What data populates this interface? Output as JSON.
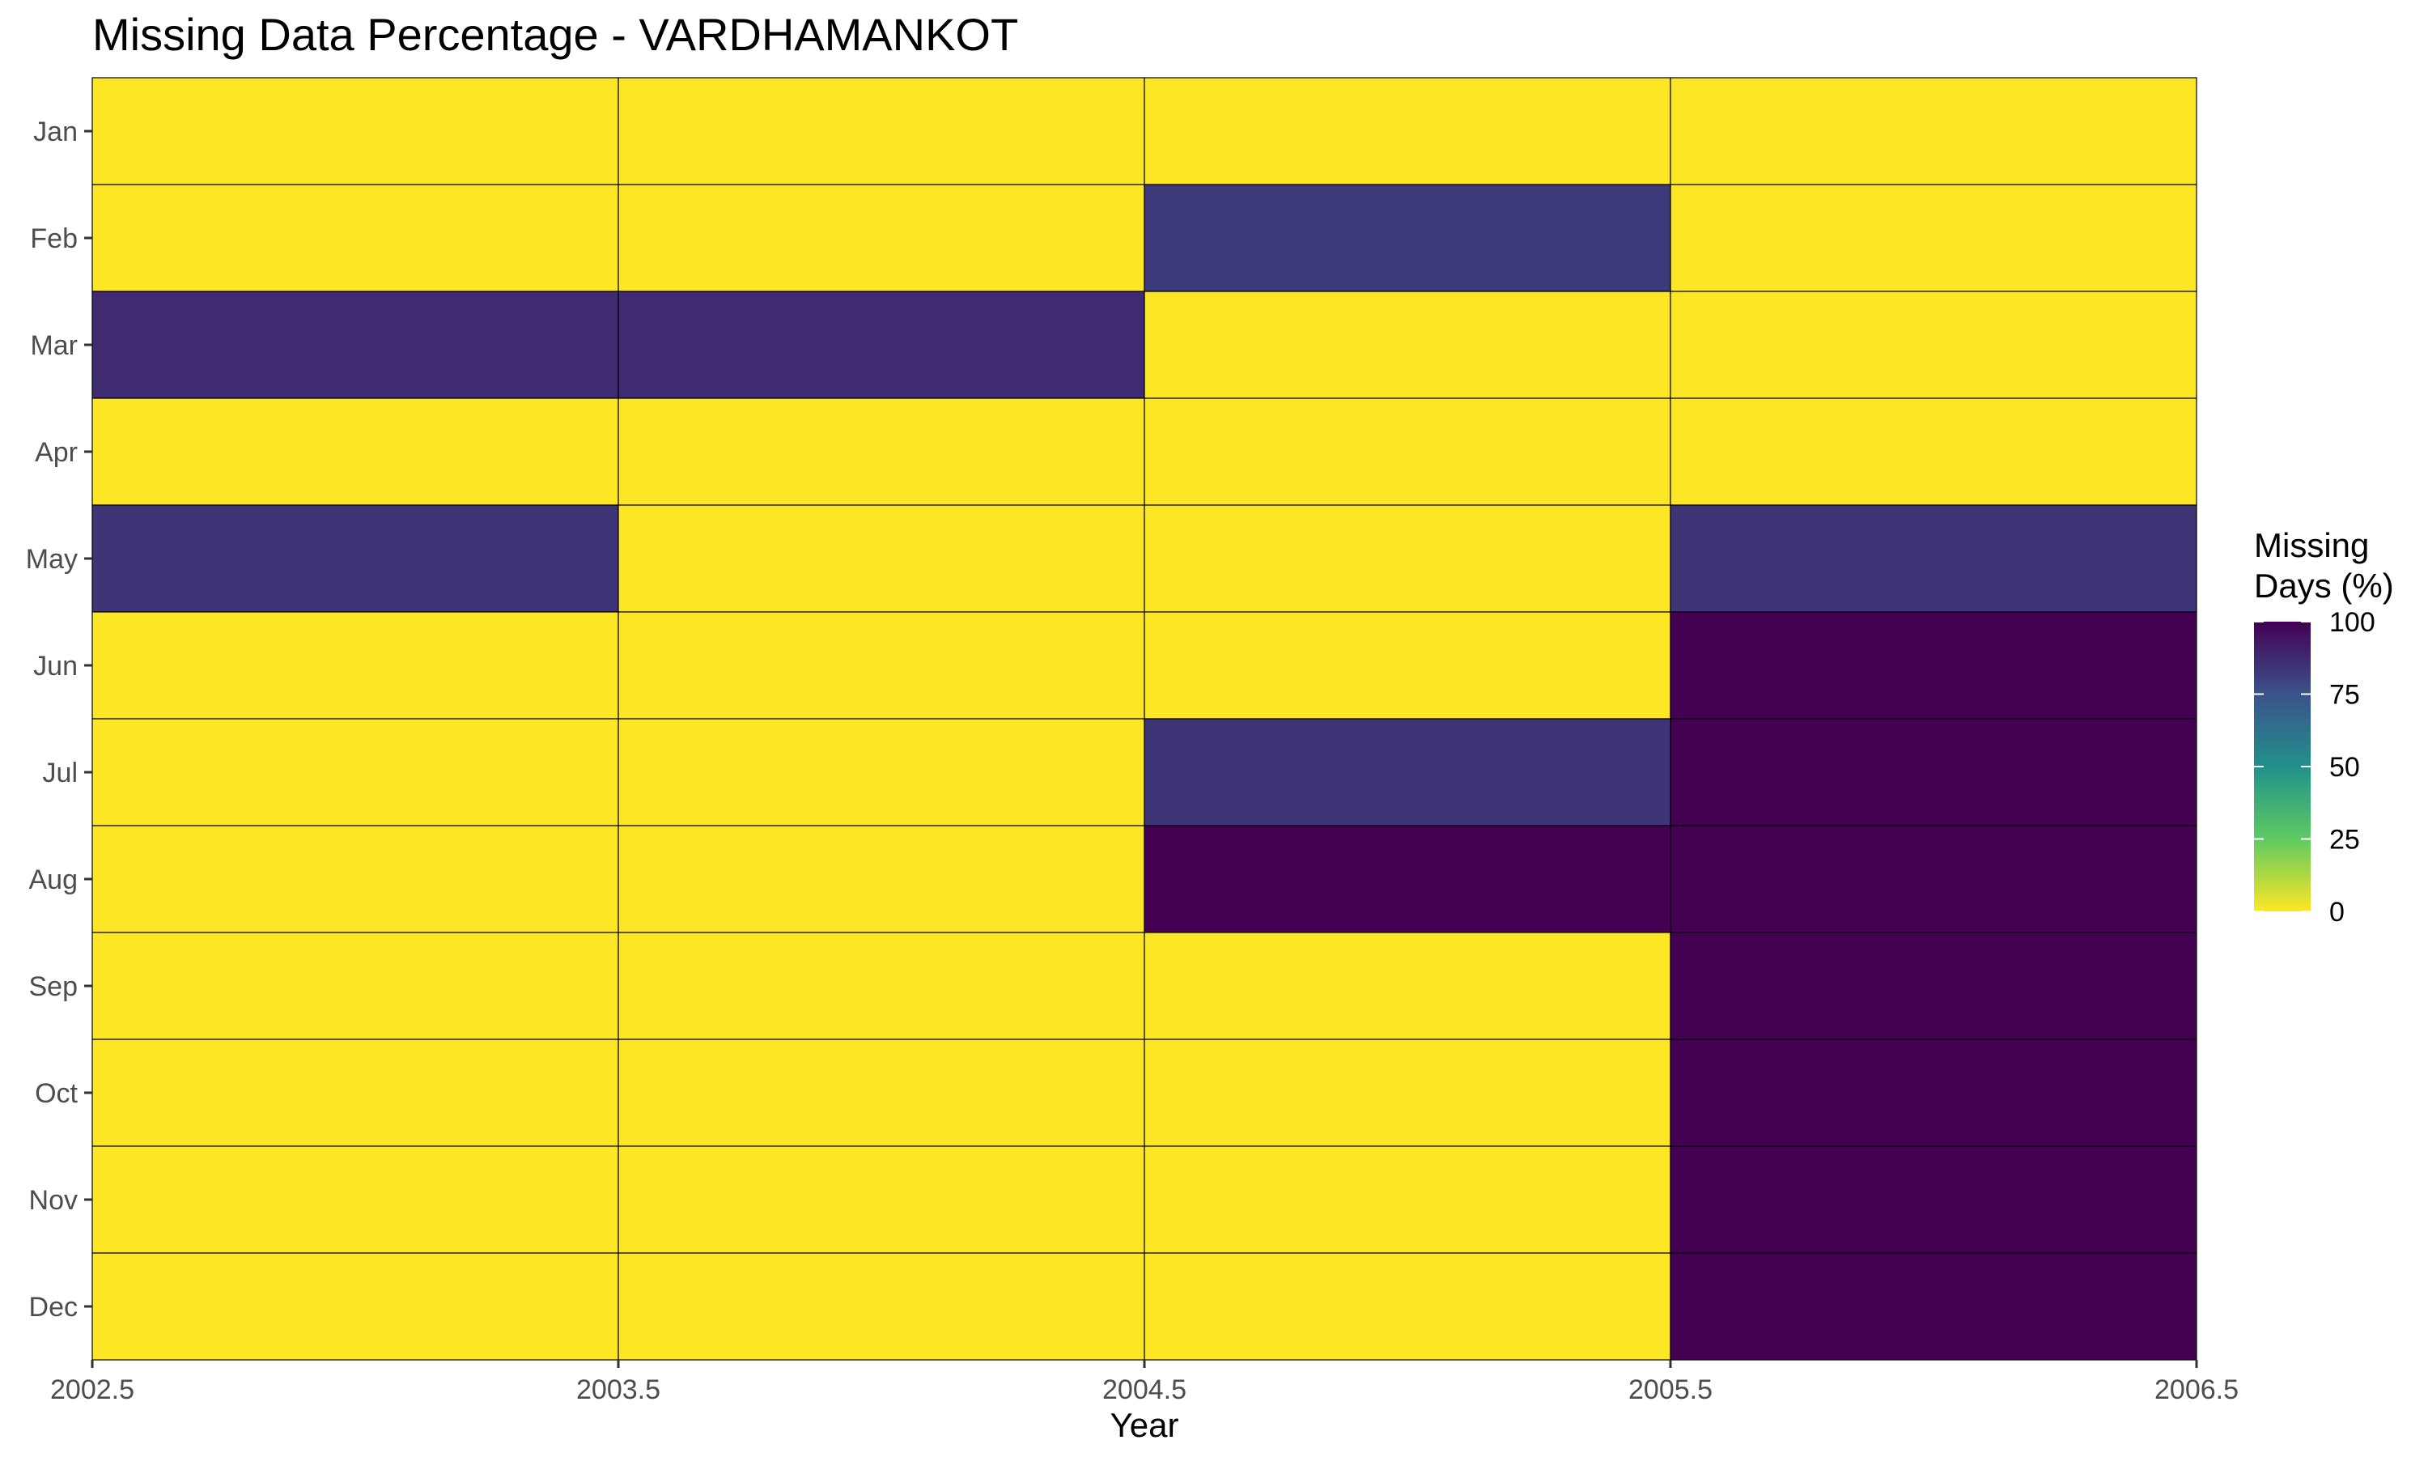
{
  "chart_data": {
    "type": "heatmap",
    "title": "Missing Data Percentage - VARDHAMANKOT",
    "xlabel": "Year",
    "ylabel": "",
    "x_tick_labels": [
      "2002.5",
      "2003.5",
      "2004.5",
      "2005.5",
      "2006.5"
    ],
    "x_range": [
      2002.5,
      2006.5
    ],
    "years": [
      2003,
      2004,
      2005,
      2006
    ],
    "months": [
      "Jan",
      "Feb",
      "Mar",
      "Apr",
      "May",
      "Jun",
      "Jul",
      "Aug",
      "Sep",
      "Oct",
      "Nov",
      "Dec"
    ],
    "values": [
      [
        0,
        0,
        0,
        0
      ],
      [
        0,
        0,
        82,
        0
      ],
      [
        87,
        87,
        0,
        0
      ],
      [
        0,
        0,
        0,
        0
      ],
      [
        84,
        0,
        0,
        84
      ],
      [
        0,
        0,
        0,
        100
      ],
      [
        0,
        0,
        84,
        100
      ],
      [
        0,
        0,
        100,
        100
      ],
      [
        0,
        0,
        0,
        100
      ],
      [
        0,
        0,
        0,
        100
      ],
      [
        0,
        0,
        0,
        100
      ],
      [
        0,
        0,
        0,
        100
      ]
    ],
    "legend": {
      "title_lines": [
        "Missing",
        "Days (%)"
      ],
      "ticks": [
        "100",
        "75",
        "50",
        "25",
        "0"
      ],
      "range": [
        0,
        100
      ],
      "position": "right"
    },
    "colorscale": "viridis (reversed)",
    "colors": {
      "c0": "#fde725",
      "c25": "#5ec962",
      "c50": "#21918c",
      "c75": "#3b528b",
      "c100": "#440154",
      "tile_border": "#000000",
      "background": "#ffffff"
    }
  }
}
